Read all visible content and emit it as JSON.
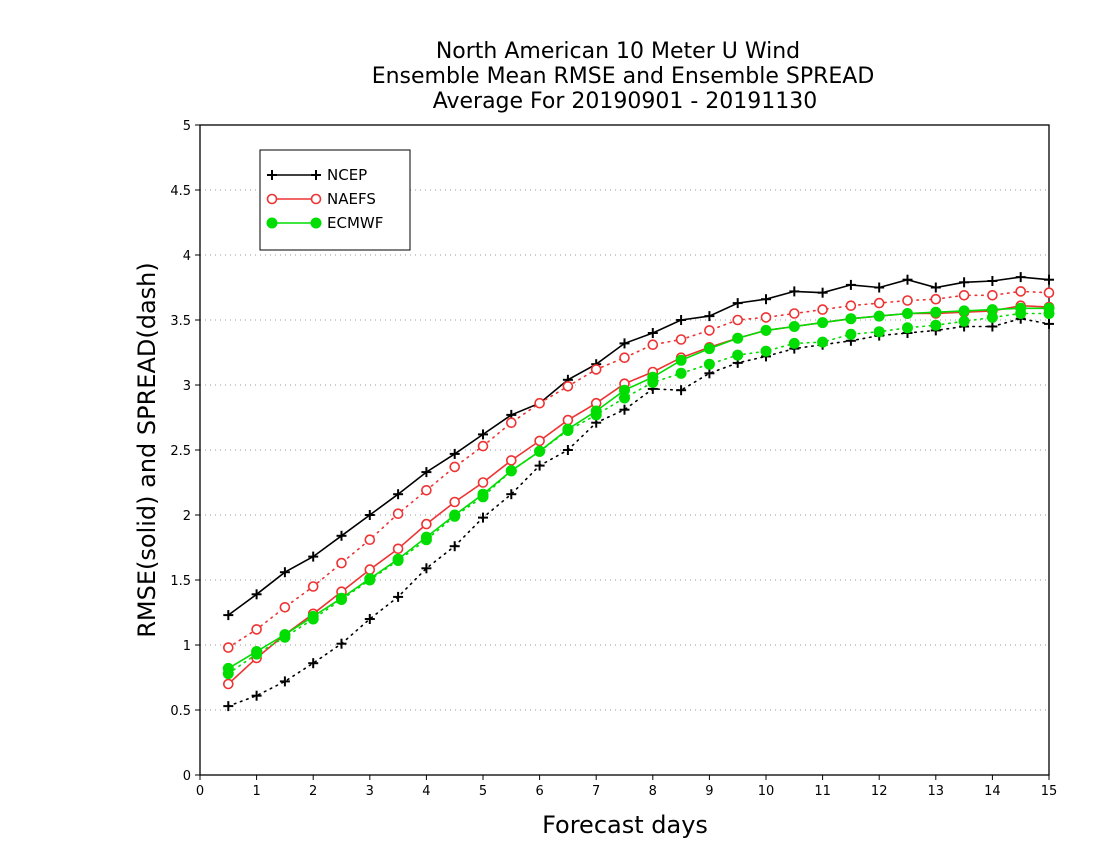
{
  "chart_data": {
    "type": "line",
    "title_lines": [
      "North American 10 Meter U Wind",
      "Ensemble Mean RMSE and Ensemble SPREAD",
      "Average For 20190901 - 20191130"
    ],
    "xlabel": "Forecast days",
    "ylabel": "RMSE(solid) and SPREAD(dash)",
    "xlim": [
      0,
      15
    ],
    "ylim": [
      0,
      5
    ],
    "xticks": [
      "0",
      "1",
      "2",
      "3",
      "4",
      "5",
      "6",
      "7",
      "8",
      "9",
      "10",
      "11",
      "12",
      "13",
      "14",
      "15"
    ],
    "yticks": [
      "0",
      "0.5",
      "1",
      "1.5",
      "2",
      "2.5",
      "3",
      "3.5",
      "4",
      "4.5",
      "5"
    ],
    "grid": true,
    "legend_position": "top-left",
    "x": [
      0.5,
      1,
      1.5,
      2,
      2.5,
      3,
      3.5,
      4,
      4.5,
      5,
      5.5,
      6,
      6.5,
      7,
      7.5,
      8,
      8.5,
      9,
      9.5,
      10,
      10.5,
      11,
      11.5,
      12,
      12.5,
      13,
      13.5,
      14,
      14.5,
      15
    ],
    "series": [
      {
        "name": "NCEP",
        "color": "#000000",
        "marker": "plus",
        "rmse": [
          1.23,
          1.39,
          1.56,
          1.68,
          1.84,
          2.0,
          2.16,
          2.33,
          2.47,
          2.62,
          2.77,
          2.86,
          3.04,
          3.16,
          3.32,
          3.4,
          3.5,
          3.53,
          3.63,
          3.66,
          3.72,
          3.71,
          3.77,
          3.75,
          3.81,
          3.75,
          3.79,
          3.8,
          3.83,
          3.81
        ],
        "spread": [
          0.53,
          0.61,
          0.72,
          0.86,
          1.01,
          1.2,
          1.37,
          1.59,
          1.76,
          1.98,
          2.16,
          2.38,
          2.5,
          2.71,
          2.81,
          2.97,
          2.96,
          3.09,
          3.17,
          3.22,
          3.28,
          3.31,
          3.34,
          3.38,
          3.4,
          3.42,
          3.45,
          3.45,
          3.51,
          3.47
        ]
      },
      {
        "name": "NAEFS",
        "color": "#ee3333",
        "marker": "open-circle",
        "rmse": [
          0.7,
          0.9,
          1.08,
          1.24,
          1.41,
          1.58,
          1.74,
          1.93,
          2.1,
          2.25,
          2.42,
          2.57,
          2.73,
          2.86,
          3.01,
          3.1,
          3.21,
          3.29,
          3.36,
          3.42,
          3.45,
          3.48,
          3.51,
          3.53,
          3.55,
          3.55,
          3.56,
          3.57,
          3.61,
          3.6
        ],
        "spread": [
          0.98,
          1.12,
          1.29,
          1.45,
          1.63,
          1.81,
          2.01,
          2.19,
          2.37,
          2.53,
          2.71,
          2.86,
          2.99,
          3.12,
          3.21,
          3.31,
          3.35,
          3.42,
          3.5,
          3.52,
          3.55,
          3.58,
          3.61,
          3.63,
          3.65,
          3.66,
          3.69,
          3.69,
          3.72,
          3.71
        ]
      },
      {
        "name": "ECMWF",
        "color": "#00dd00",
        "marker": "filled-circle",
        "rmse": [
          0.82,
          0.95,
          1.08,
          1.22,
          1.36,
          1.51,
          1.66,
          1.83,
          2.0,
          2.16,
          2.34,
          2.49,
          2.66,
          2.8,
          2.96,
          3.06,
          3.19,
          3.28,
          3.36,
          3.42,
          3.45,
          3.48,
          3.51,
          3.53,
          3.55,
          3.56,
          3.57,
          3.58,
          3.59,
          3.59
        ],
        "spread": [
          0.78,
          0.93,
          1.06,
          1.2,
          1.35,
          1.5,
          1.65,
          1.81,
          1.99,
          2.14,
          2.34,
          2.49,
          2.65,
          2.77,
          2.9,
          3.02,
          3.09,
          3.16,
          3.23,
          3.26,
          3.32,
          3.33,
          3.39,
          3.41,
          3.44,
          3.46,
          3.49,
          3.52,
          3.55,
          3.55
        ]
      }
    ]
  }
}
